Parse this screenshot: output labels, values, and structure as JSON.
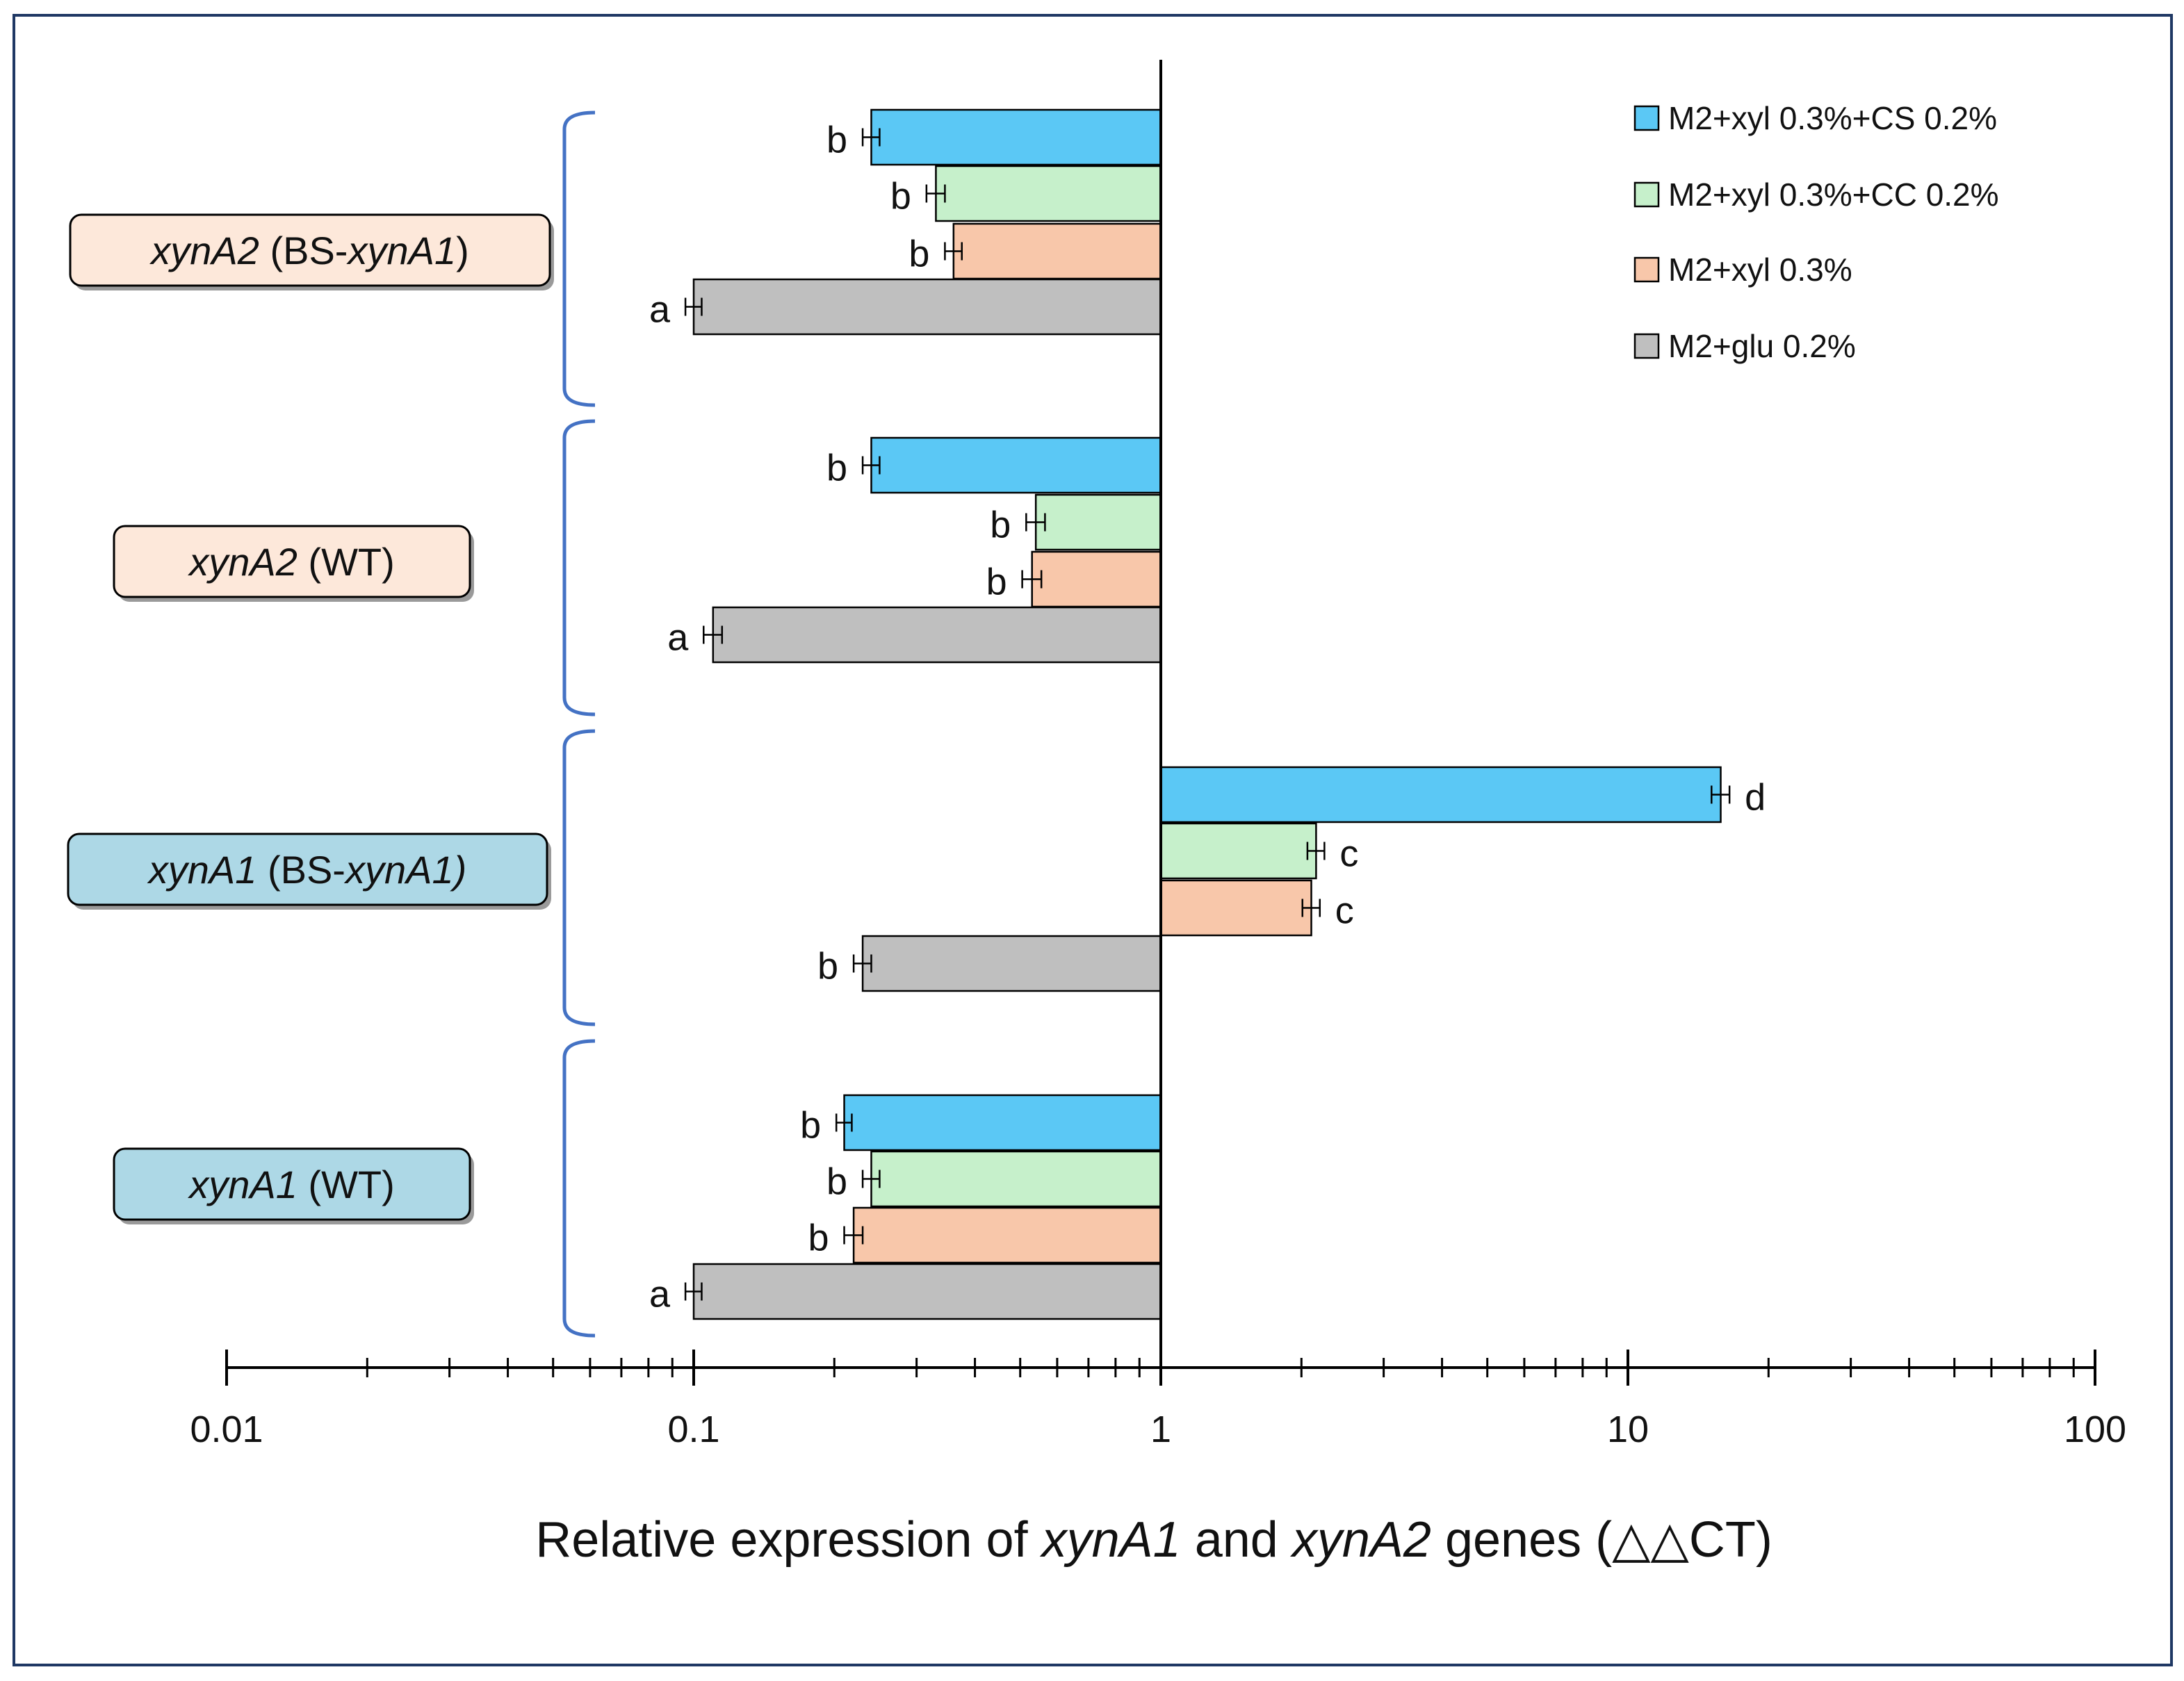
{
  "colors": {
    "frame": "#1f3864",
    "bracket": "#4472c4",
    "axis": "#000000",
    "bar_outline": "#000000",
    "label_box_orange": "#fde8da",
    "label_box_blue": "#add8e6"
  },
  "chart_data": {
    "type": "bar",
    "orientation": "horizontal",
    "x_scale": "log",
    "xlim": [
      0.01,
      100
    ],
    "baseline": 1,
    "x_ticks": [
      "0.01",
      "0.1",
      "1",
      "10",
      "100"
    ],
    "axis_title": {
      "p1": "Relative  expression of ",
      "g1": "xynA1",
      "p2": " and ",
      "g2": "xynA2",
      "p3": " genes  (",
      "sym": "△△",
      "p4": "CT)"
    },
    "legend": [
      {
        "label": "M2+xyl 0.3%+CS 0.2%",
        "color": "#5bc8f5"
      },
      {
        "label": "M2+xyl 0.3%+CC 0.2%",
        "color": "#c6f0cb"
      },
      {
        "label": "M2+xyl 0.3%",
        "color": "#f8c7aa"
      },
      {
        "label": "M2+glu 0.2%",
        "color": "#bfbfbf"
      }
    ],
    "groups": [
      {
        "label_gene": "xynA2",
        "label_open": " (BS-",
        "label_gene2": "xynA1",
        "label_close": ")",
        "box_color": "#fde8da",
        "bars": [
          {
            "series": "M2+xyl 0.3%+CS 0.2%",
            "value": 0.24,
            "error": 0.01,
            "letter": "b"
          },
          {
            "series": "M2+xyl 0.3%+CC 0.2%",
            "value": 0.33,
            "error": 0.015,
            "letter": "b"
          },
          {
            "series": "M2+xyl 0.3%",
            "value": 0.36,
            "error": 0.015,
            "letter": "b"
          },
          {
            "series": "M2+glu 0.2%",
            "value": 0.1,
            "error": 0.004,
            "letter": "a"
          }
        ]
      },
      {
        "label_gene": "xynA2",
        "label_open": " (WT)",
        "label_gene2": "",
        "label_close": "",
        "box_color": "#fde8da",
        "bars": [
          {
            "series": "M2+xyl 0.3%+CS 0.2%",
            "value": 0.24,
            "error": 0.01,
            "letter": "b"
          },
          {
            "series": "M2+xyl 0.3%+CC 0.2%",
            "value": 0.54,
            "error": 0.025,
            "letter": "b"
          },
          {
            "series": "M2+xyl 0.3%",
            "value": 0.53,
            "error": 0.025,
            "letter": "b"
          },
          {
            "series": "M2+glu 0.2%",
            "value": 0.11,
            "error": 0.005,
            "letter": "a"
          }
        ]
      },
      {
        "label_gene": "xynA1",
        "label_open": " (BS-",
        "label_gene2": "xynA1)",
        "label_close": "",
        "box_color": "#add8e6",
        "bars": [
          {
            "series": "M2+xyl 0.3%+CS 0.2%",
            "value": 15.8,
            "error": 0.7,
            "letter": "d"
          },
          {
            "series": "M2+xyl 0.3%+CC 0.2%",
            "value": 2.15,
            "error": 0.09,
            "letter": "c"
          },
          {
            "series": "M2+xyl 0.3%",
            "value": 2.1,
            "error": 0.09,
            "letter": "c"
          },
          {
            "series": "M2+glu 0.2%",
            "value": 0.23,
            "error": 0.01,
            "letter": "b"
          }
        ]
      },
      {
        "label_gene": "xynA1",
        "label_open": " (WT)",
        "label_gene2": "",
        "label_close": "",
        "box_color": "#add8e6",
        "bars": [
          {
            "series": "M2+xyl 0.3%+CS 0.2%",
            "value": 0.21,
            "error": 0.008,
            "letter": "b"
          },
          {
            "series": "M2+xyl 0.3%+CC 0.2%",
            "value": 0.24,
            "error": 0.01,
            "letter": "b"
          },
          {
            "series": "M2+xyl 0.3%",
            "value": 0.22,
            "error": 0.01,
            "letter": "b"
          },
          {
            "series": "M2+glu 0.2%",
            "value": 0.1,
            "error": 0.004,
            "letter": "a"
          }
        ]
      }
    ]
  }
}
